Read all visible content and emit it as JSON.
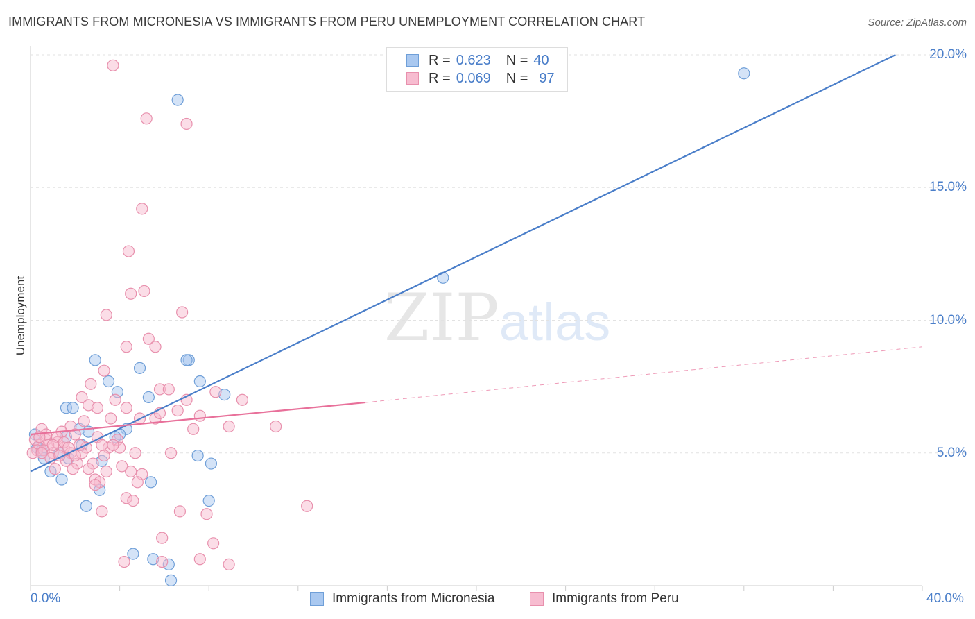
{
  "header": {
    "title": "IMMIGRANTS FROM MICRONESIA VS IMMIGRANTS FROM PERU UNEMPLOYMENT CORRELATION CHART",
    "source": "Source: ZipAtlas.com"
  },
  "watermark": {
    "zip": "ZIP",
    "atlas": "atlas"
  },
  "legend": {
    "rows": [
      {
        "r_label": "R =",
        "r_value": "0.623",
        "n_label": "N =",
        "n_value": "40",
        "color": "#a9c8f0",
        "border": "#6f9fd8"
      },
      {
        "r_label": "R =",
        "r_value": "0.069",
        "n_label": "N =",
        "n_value": "97",
        "color": "#f7bcd0",
        "border": "#e890ad"
      }
    ]
  },
  "bottom_legend": [
    {
      "label": "Immigrants from Micronesia",
      "color": "#a9c8f0",
      "border": "#6f9fd8"
    },
    {
      "label": "Immigrants from Peru",
      "color": "#f7bcd0",
      "border": "#e890ad"
    }
  ],
  "chart_data": {
    "type": "scatter",
    "title": "IMMIGRANTS FROM MICRONESIA VS IMMIGRANTS FROM PERU UNEMPLOYMENT CORRELATION CHART",
    "xlabel": "",
    "ylabel": "Unemployment",
    "xlim": [
      0,
      40
    ],
    "ylim": [
      0,
      20
    ],
    "x_tick_labels": [
      "0.0%",
      "40.0%"
    ],
    "y_tick_labels": [
      "5.0%",
      "10.0%",
      "15.0%",
      "20.0%"
    ],
    "y_ticks": [
      5,
      10,
      15,
      20
    ],
    "grid": true,
    "legend_position": "top-center",
    "series": [
      {
        "name": "Immigrants from Micronesia",
        "color": "#4a7ec9",
        "fill": "#a9c8f0",
        "stroke": "#6f9fd8",
        "r": 0.623,
        "n": 40,
        "trend": {
          "x0": 0,
          "y0": 4.3,
          "x1": 38.8,
          "y1": 20,
          "x_dash_end": 38.8,
          "y_dash_end": 20
        },
        "points": [
          [
            6.6,
            18.3
          ],
          [
            32.0,
            19.3
          ],
          [
            18.5,
            11.6
          ],
          [
            2.9,
            8.5
          ],
          [
            7.1,
            8.5
          ],
          [
            7.0,
            8.5
          ],
          [
            4.9,
            8.2
          ],
          [
            3.5,
            7.7
          ],
          [
            7.6,
            7.7
          ],
          [
            3.9,
            7.3
          ],
          [
            8.7,
            7.2
          ],
          [
            5.3,
            7.1
          ],
          [
            1.6,
            6.7
          ],
          [
            1.9,
            6.7
          ],
          [
            2.2,
            5.9
          ],
          [
            4.3,
            5.9
          ],
          [
            2.6,
            5.8
          ],
          [
            4.0,
            5.7
          ],
          [
            3.8,
            5.6
          ],
          [
            0.2,
            5.7
          ],
          [
            1.6,
            5.6
          ],
          [
            2.3,
            5.3
          ],
          [
            0.3,
            5.2
          ],
          [
            0.5,
            5.1
          ],
          [
            1.3,
            5.0
          ],
          [
            0.6,
            4.8
          ],
          [
            1.7,
            4.8
          ],
          [
            3.2,
            4.7
          ],
          [
            7.5,
            4.9
          ],
          [
            8.1,
            4.6
          ],
          [
            0.9,
            4.3
          ],
          [
            1.4,
            4.0
          ],
          [
            5.4,
            3.9
          ],
          [
            3.1,
            3.6
          ],
          [
            2.5,
            3.0
          ],
          [
            8.0,
            3.2
          ],
          [
            4.6,
            1.2
          ],
          [
            6.2,
            0.8
          ],
          [
            6.3,
            0.2
          ],
          [
            5.5,
            1.0
          ]
        ]
      },
      {
        "name": "Immigrants from Peru",
        "color": "#e8709a",
        "fill": "#f7bcd0",
        "stroke": "#e890ad",
        "r": 0.069,
        "n": 97,
        "trend": {
          "x0": 0,
          "y0": 5.7,
          "x1": 15.0,
          "y1": 6.9,
          "x_dash_end": 40,
          "y_dash_end": 9.0
        },
        "points": [
          [
            3.7,
            19.6
          ],
          [
            5.2,
            17.6
          ],
          [
            7.0,
            17.4
          ],
          [
            5.0,
            14.2
          ],
          [
            4.4,
            12.6
          ],
          [
            5.1,
            11.1
          ],
          [
            4.5,
            11.0
          ],
          [
            3.4,
            10.2
          ],
          [
            6.8,
            10.3
          ],
          [
            4.3,
            9.0
          ],
          [
            5.3,
            9.3
          ],
          [
            5.6,
            9.0
          ],
          [
            3.3,
            8.1
          ],
          [
            2.7,
            7.6
          ],
          [
            5.8,
            7.4
          ],
          [
            6.2,
            7.4
          ],
          [
            8.3,
            7.3
          ],
          [
            2.3,
            7.1
          ],
          [
            3.8,
            7.0
          ],
          [
            7.0,
            7.0
          ],
          [
            9.5,
            7.0
          ],
          [
            2.6,
            6.8
          ],
          [
            3.0,
            6.7
          ],
          [
            4.3,
            6.7
          ],
          [
            6.6,
            6.6
          ],
          [
            7.6,
            6.4
          ],
          [
            2.4,
            6.2
          ],
          [
            3.6,
            6.3
          ],
          [
            5.6,
            6.3
          ],
          [
            1.8,
            6.0
          ],
          [
            7.3,
            5.9
          ],
          [
            8.9,
            6.0
          ],
          [
            11.0,
            6.0
          ],
          [
            0.5,
            5.9
          ],
          [
            1.4,
            5.8
          ],
          [
            2.0,
            5.7
          ],
          [
            3.0,
            5.6
          ],
          [
            3.9,
            5.5
          ],
          [
            0.7,
            5.5
          ],
          [
            1.2,
            5.4
          ],
          [
            0.2,
            5.5
          ],
          [
            0.4,
            5.3
          ],
          [
            0.8,
            5.3
          ],
          [
            1.5,
            5.2
          ],
          [
            2.5,
            5.2
          ],
          [
            3.5,
            5.2
          ],
          [
            4.0,
            5.2
          ],
          [
            0.3,
            5.1
          ],
          [
            0.6,
            5.1
          ],
          [
            1.0,
            5.0
          ],
          [
            0.1,
            5.0
          ],
          [
            1.8,
            5.0
          ],
          [
            2.3,
            5.0
          ],
          [
            3.3,
            4.9
          ],
          [
            4.7,
            5.0
          ],
          [
            6.3,
            5.0
          ],
          [
            0.9,
            4.8
          ],
          [
            1.6,
            4.7
          ],
          [
            2.1,
            4.6
          ],
          [
            2.8,
            4.6
          ],
          [
            4.1,
            4.5
          ],
          [
            1.1,
            4.4
          ],
          [
            1.9,
            4.4
          ],
          [
            2.6,
            4.4
          ],
          [
            3.4,
            4.3
          ],
          [
            4.5,
            4.3
          ],
          [
            5.0,
            4.2
          ],
          [
            2.9,
            4.0
          ],
          [
            3.1,
            3.9
          ],
          [
            4.8,
            3.9
          ],
          [
            2.9,
            3.8
          ],
          [
            4.3,
            3.3
          ],
          [
            4.6,
            3.2
          ],
          [
            3.2,
            2.8
          ],
          [
            6.7,
            2.8
          ],
          [
            7.9,
            2.7
          ],
          [
            12.4,
            3.0
          ],
          [
            5.9,
            1.8
          ],
          [
            8.2,
            1.6
          ],
          [
            5.9,
            0.9
          ],
          [
            4.2,
            0.9
          ],
          [
            7.6,
            1.0
          ],
          [
            8.9,
            0.8
          ],
          [
            1.2,
            5.6
          ],
          [
            0.7,
            5.7
          ],
          [
            1.5,
            5.4
          ],
          [
            2.2,
            5.3
          ],
          [
            0.5,
            5.0
          ],
          [
            1.7,
            5.2
          ],
          [
            3.7,
            5.3
          ],
          [
            0.4,
            5.6
          ],
          [
            2.0,
            4.9
          ],
          [
            1.3,
            4.9
          ],
          [
            4.9,
            6.3
          ],
          [
            3.2,
            5.3
          ],
          [
            1.0,
            5.3
          ],
          [
            5.8,
            6.5
          ]
        ]
      }
    ]
  }
}
